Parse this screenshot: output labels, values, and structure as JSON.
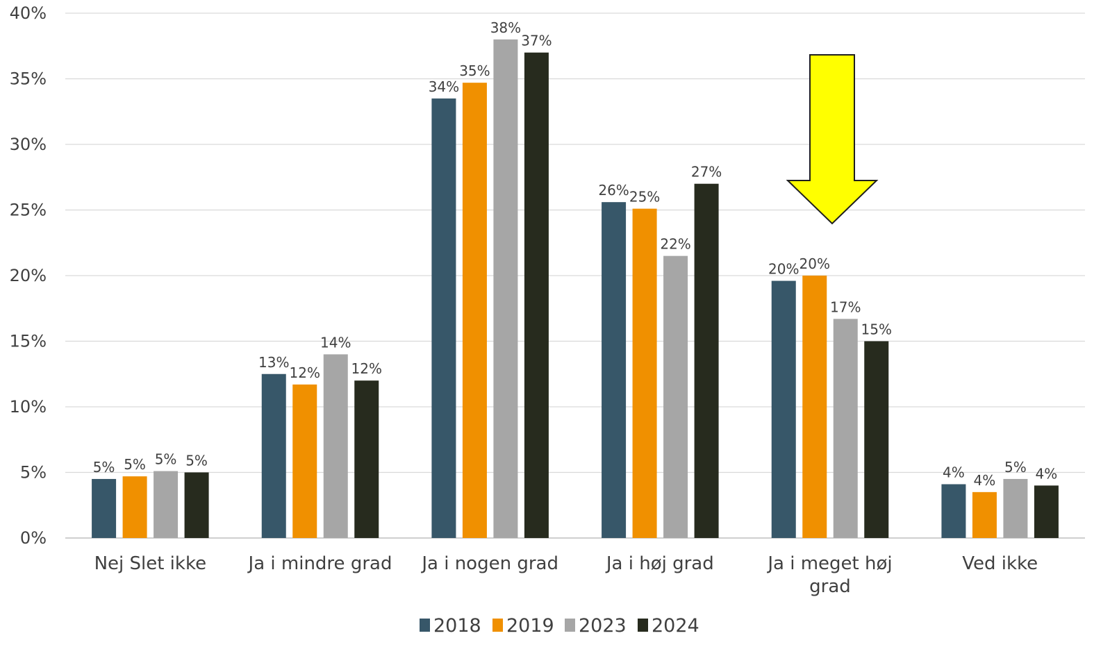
{
  "chart_data": {
    "type": "bar",
    "title": "",
    "xlabel": "",
    "ylabel": "",
    "ylim": [
      0,
      40
    ],
    "yticks": [
      "0%",
      "5%",
      "10%",
      "15%",
      "20%",
      "25%",
      "30%",
      "35%",
      "40%"
    ],
    "grid": true,
    "legend_position": "bottom",
    "categories": [
      "Nej Slet ikke",
      "Ja i mindre grad",
      "Ja i nogen grad",
      "Ja i høj grad",
      "Ja i meget høj grad",
      "Ved ikke"
    ],
    "series": [
      {
        "name": "2018",
        "color": "#375769",
        "values": [
          4.5,
          12.5,
          33.5,
          25.6,
          19.6,
          4.1
        ],
        "labels": [
          "5%",
          "13%",
          "34%",
          "26%",
          "20%",
          "4%"
        ]
      },
      {
        "name": "2019",
        "color": "#F09000",
        "values": [
          4.7,
          11.7,
          34.7,
          25.1,
          20.0,
          3.5
        ],
        "labels": [
          "5%",
          "12%",
          "35%",
          "25%",
          "20%",
          "4%"
        ]
      },
      {
        "name": "2023",
        "color": "#A6A6A6",
        "values": [
          5.1,
          14.0,
          38.0,
          21.5,
          16.7,
          4.5
        ],
        "labels": [
          "5%",
          "14%",
          "38%",
          "22%",
          "17%",
          "5%"
        ]
      },
      {
        "name": "2024",
        "color": "#272B1E",
        "values": [
          5.0,
          12.0,
          37.0,
          27.0,
          15.0,
          4.0
        ],
        "labels": [
          "5%",
          "12%",
          "37%",
          "27%",
          "15%",
          "4%"
        ]
      }
    ],
    "annotation": {
      "type": "arrow-down",
      "target_category": "Ja i meget høj grad",
      "fill": "#FFFF00",
      "stroke": "#1f1f1f"
    }
  }
}
